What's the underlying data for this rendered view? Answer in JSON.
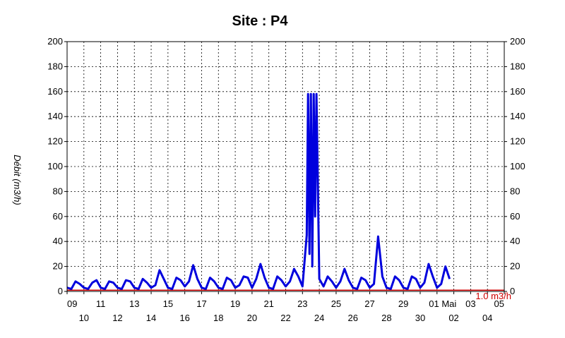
{
  "chart_data": {
    "type": "line",
    "title": "Site :  P4",
    "ylabel": "Débit  (m3/h)",
    "ylim": [
      0,
      200
    ],
    "yticks": [
      0,
      20,
      40,
      60,
      80,
      100,
      120,
      140,
      160,
      180,
      200
    ],
    "grid": true,
    "x_range": [
      "2000-04-09",
      "2000-05-05"
    ],
    "xticks_upper": [
      "09",
      "11",
      "13",
      "15",
      "17",
      "19",
      "21",
      "23",
      "25",
      "27",
      "29",
      "01 Mai",
      "03",
      "05"
    ],
    "xticks_lower": [
      "10",
      "12",
      "14",
      "16",
      "18",
      "20",
      "22",
      "24",
      "26",
      "28",
      "30",
      "02",
      "04"
    ],
    "threshold": {
      "value": 1.0,
      "label": "1.0 m3/h",
      "color": "#cc0000"
    },
    "series": [
      {
        "color": "#0000dd",
        "points": [
          [
            "04-09 00:00",
            3
          ],
          [
            "04-09 06:00",
            2
          ],
          [
            "04-09 12:00",
            8
          ],
          [
            "04-09 18:00",
            6
          ],
          [
            "04-10 00:00",
            3
          ],
          [
            "04-10 06:00",
            2
          ],
          [
            "04-10 12:00",
            7
          ],
          [
            "04-10 18:00",
            9
          ],
          [
            "04-11 00:00",
            3
          ],
          [
            "04-11 06:00",
            2
          ],
          [
            "04-11 12:00",
            8
          ],
          [
            "04-11 18:00",
            7
          ],
          [
            "04-12 00:00",
            3
          ],
          [
            "04-12 06:00",
            2
          ],
          [
            "04-12 12:00",
            9
          ],
          [
            "04-12 18:00",
            8
          ],
          [
            "04-13 00:00",
            3
          ],
          [
            "04-13 06:00",
            2
          ],
          [
            "04-13 12:00",
            10
          ],
          [
            "04-13 18:00",
            7
          ],
          [
            "04-14 00:00",
            3
          ],
          [
            "04-14 06:00",
            5
          ],
          [
            "04-14 12:00",
            17
          ],
          [
            "04-14 18:00",
            10
          ],
          [
            "04-15 00:00",
            3
          ],
          [
            "04-15 06:00",
            2
          ],
          [
            "04-15 12:00",
            11
          ],
          [
            "04-15 18:00",
            9
          ],
          [
            "04-16 00:00",
            4
          ],
          [
            "04-16 06:00",
            8
          ],
          [
            "04-16 12:00",
            21
          ],
          [
            "04-16 18:00",
            10
          ],
          [
            "04-17 00:00",
            3
          ],
          [
            "04-17 06:00",
            2
          ],
          [
            "04-17 12:00",
            11
          ],
          [
            "04-17 18:00",
            8
          ],
          [
            "04-18 00:00",
            3
          ],
          [
            "04-18 06:00",
            2
          ],
          [
            "04-18 12:00",
            11
          ],
          [
            "04-18 18:00",
            9
          ],
          [
            "04-19 00:00",
            3
          ],
          [
            "04-19 06:00",
            5
          ],
          [
            "04-19 12:00",
            12
          ],
          [
            "04-19 18:00",
            11
          ],
          [
            "04-20 00:00",
            3
          ],
          [
            "04-20 06:00",
            10
          ],
          [
            "04-20 12:00",
            22
          ],
          [
            "04-20 18:00",
            11
          ],
          [
            "04-21 00:00",
            3
          ],
          [
            "04-21 06:00",
            2
          ],
          [
            "04-21 12:00",
            12
          ],
          [
            "04-21 18:00",
            9
          ],
          [
            "04-22 00:00",
            4
          ],
          [
            "04-22 06:00",
            8
          ],
          [
            "04-22 12:00",
            18
          ],
          [
            "04-22 18:00",
            12
          ],
          [
            "04-23 00:00",
            4
          ],
          [
            "04-23 06:00",
            45
          ],
          [
            "04-23 08:00",
            158
          ],
          [
            "04-23 10:00",
            30
          ],
          [
            "04-23 12:00",
            158
          ],
          [
            "04-23 14:00",
            20
          ],
          [
            "04-23 16:00",
            158
          ],
          [
            "04-23 18:00",
            60
          ],
          [
            "04-23 20:00",
            158
          ],
          [
            "04-24 00:00",
            10
          ],
          [
            "04-24 06:00",
            4
          ],
          [
            "04-24 12:00",
            12
          ],
          [
            "04-24 18:00",
            8
          ],
          [
            "04-25 00:00",
            3
          ],
          [
            "04-25 06:00",
            8
          ],
          [
            "04-25 12:00",
            18
          ],
          [
            "04-25 18:00",
            9
          ],
          [
            "04-26 00:00",
            3
          ],
          [
            "04-26 06:00",
            2
          ],
          [
            "04-26 12:00",
            11
          ],
          [
            "04-26 18:00",
            9
          ],
          [
            "04-27 00:00",
            3
          ],
          [
            "04-27 06:00",
            6
          ],
          [
            "04-27 12:00",
            44
          ],
          [
            "04-27 18:00",
            12
          ],
          [
            "04-28 00:00",
            3
          ],
          [
            "04-28 06:00",
            2
          ],
          [
            "04-28 12:00",
            12
          ],
          [
            "04-28 18:00",
            9
          ],
          [
            "04-29 00:00",
            3
          ],
          [
            "04-29 06:00",
            2
          ],
          [
            "04-29 12:00",
            12
          ],
          [
            "04-29 18:00",
            10
          ],
          [
            "04-30 00:00",
            3
          ],
          [
            "04-30 06:00",
            7
          ],
          [
            "04-30 12:00",
            22
          ],
          [
            "04-30 18:00",
            12
          ],
          [
            "05-01 00:00",
            3
          ],
          [
            "05-01 06:00",
            6
          ],
          [
            "05-01 12:00",
            20
          ],
          [
            "05-01 18:00",
            10
          ]
        ]
      }
    ]
  }
}
